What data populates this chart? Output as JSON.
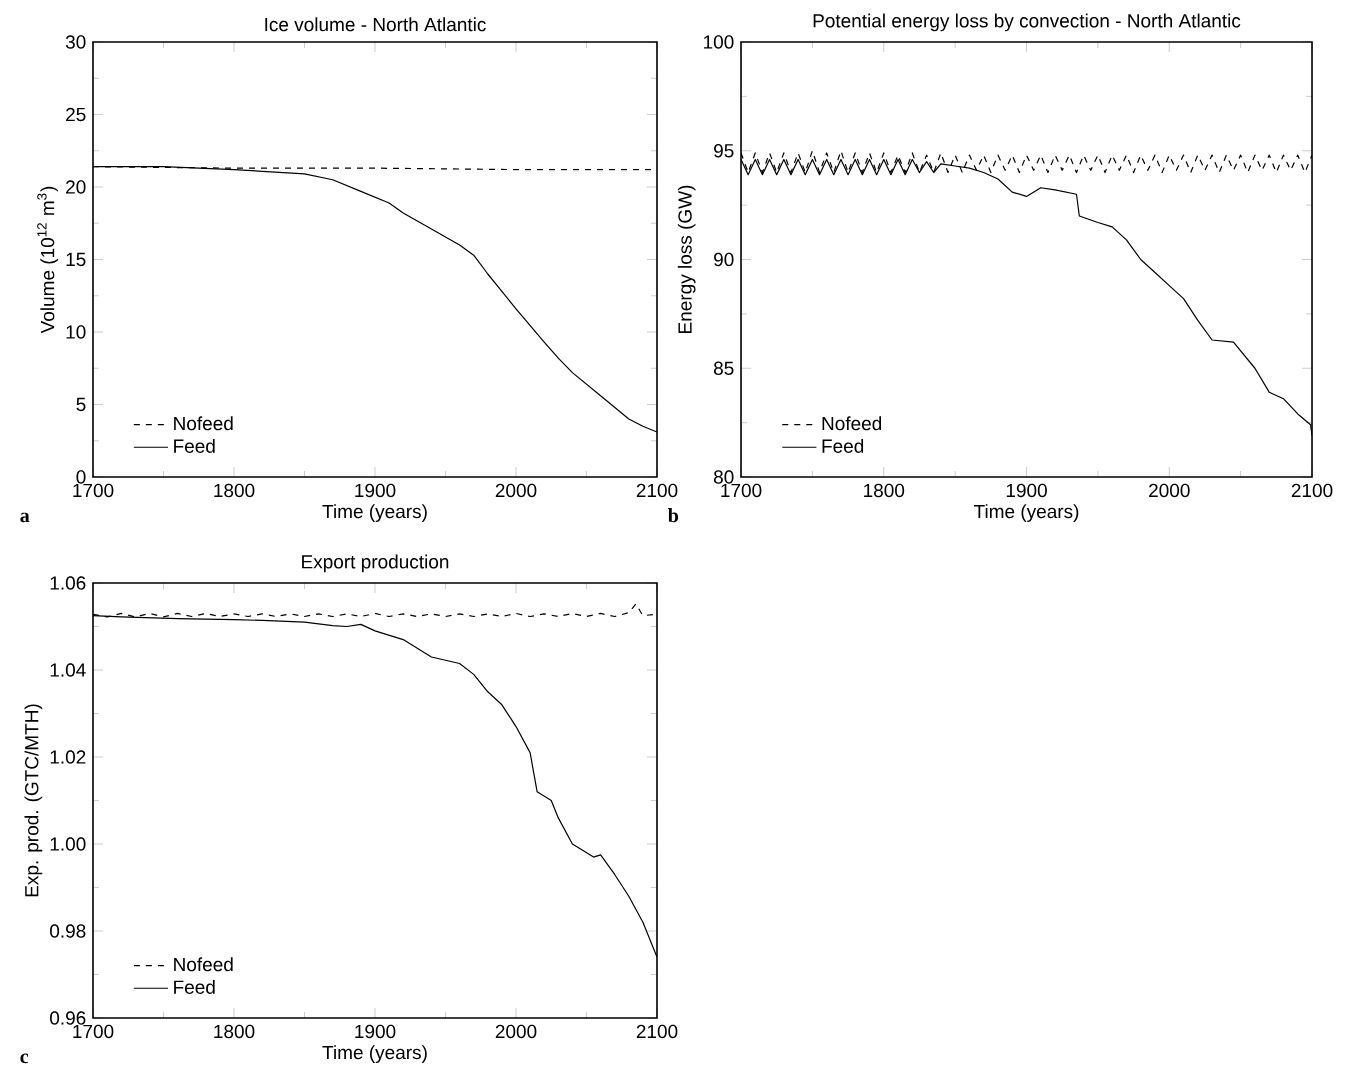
{
  "chart_data": [
    {
      "type": "line",
      "title": "Ice volume - North Atlantic",
      "xlabel": "Time (years)",
      "ylabel": "Volume (10$^{12}$ m$^{3}$)",
      "annotations": [
        "a"
      ],
      "legend": "bottom left",
      "xlim": [
        1700,
        2100
      ],
      "xticks": [
        1700,
        1800,
        1900,
        2000,
        2100
      ],
      "ylim": [
        0,
        30
      ],
      "yticks": [
        0,
        5,
        10,
        15,
        20,
        25,
        30
      ],
      "series": [
        {
          "name": "Nofeed",
          "color": "#000000",
          "line_style": "dashed",
          "x": [
            1700,
            1800,
            1900,
            2000,
            2100
          ],
          "values": [
            21.4,
            21.3,
            21.3,
            21.2,
            21.2
          ]
        },
        {
          "name": "Feed",
          "color": "#000000",
          "line_style": "solid",
          "x": [
            1700,
            1750,
            1800,
            1850,
            1870,
            1890,
            1900,
            1910,
            1920,
            1940,
            1960,
            1970,
            1980,
            2000,
            2020,
            2030,
            2040,
            2060,
            2080,
            2090,
            2100
          ],
          "values": [
            21.4,
            21.4,
            21.2,
            20.9,
            20.5,
            19.7,
            19.3,
            18.9,
            18.2,
            17.1,
            16.0,
            15.3,
            14.0,
            11.6,
            9.3,
            8.2,
            7.2,
            5.6,
            4.0,
            3.5,
            3.1
          ]
        }
      ]
    },
    {
      "type": "line",
      "title": "Potential energy loss by convection - North Atlantic",
      "xlabel": "Time (years)",
      "ylabel": "Energy loss (GW)",
      "annotations": [
        "b"
      ],
      "legend": "bottom left",
      "xlim": [
        1700,
        2100
      ],
      "xticks": [
        1700,
        1800,
        1900,
        2000,
        2100
      ],
      "ylim": [
        80,
        100
      ],
      "yticks": [
        80,
        85,
        90,
        95,
        100
      ],
      "series": [
        {
          "name": "Nofeed",
          "color": "#000000",
          "line_style": "dashed",
          "x": [
            1700,
            1705,
            1710,
            1715,
            1720,
            1725,
            1730,
            1735,
            1740,
            1745,
            1750,
            1755,
            1760,
            1765,
            1770,
            1775,
            1780,
            1785,
            1790,
            1795,
            1800,
            1805,
            1810,
            1815,
            1820,
            1825,
            1830,
            1835,
            1840,
            1845,
            1850,
            1855,
            1860,
            1865,
            1870,
            1875,
            1880,
            1885,
            1890,
            1895,
            1900,
            1905,
            1910,
            1915,
            1920,
            1925,
            1930,
            1935,
            1940,
            1945,
            1950,
            1955,
            1960,
            1965,
            1970,
            1975,
            1980,
            1985,
            1990,
            1995,
            2000,
            2005,
            2010,
            2015,
            2020,
            2025,
            2030,
            2035,
            2040,
            2045,
            2050,
            2055,
            2060,
            2065,
            2070,
            2075,
            2080,
            2085,
            2090,
            2095,
            2100
          ],
          "values": [
            94.9,
            94.0,
            94.9,
            94.0,
            94.9,
            94.0,
            94.9,
            94.0,
            94.9,
            94.0,
            95.0,
            94.0,
            94.9,
            94.0,
            95.0,
            94.0,
            94.9,
            94.0,
            94.9,
            94.0,
            94.9,
            94.0,
            94.8,
            94.0,
            94.9,
            94.0,
            94.8,
            94.0,
            94.9,
            94.0,
            94.8,
            94.0,
            94.8,
            94.1,
            94.8,
            94.0,
            94.8,
            94.1,
            94.8,
            94.0,
            94.8,
            94.1,
            94.8,
            94.0,
            94.8,
            94.1,
            94.8,
            94.0,
            94.8,
            94.1,
            94.8,
            94.0,
            94.8,
            94.1,
            94.8,
            94.0,
            94.8,
            94.1,
            94.8,
            94.0,
            94.8,
            94.1,
            94.8,
            94.0,
            94.8,
            94.1,
            94.8,
            94.0,
            94.8,
            94.1,
            94.8,
            94.0,
            94.8,
            94.1,
            94.8,
            94.0,
            94.8,
            94.1,
            94.8,
            94.0,
            94.8
          ]
        },
        {
          "name": "Feed",
          "color": "#000000",
          "line_style": "solid",
          "x": [
            1700,
            1705,
            1710,
            1715,
            1720,
            1725,
            1730,
            1735,
            1740,
            1745,
            1750,
            1755,
            1760,
            1765,
            1770,
            1775,
            1780,
            1785,
            1790,
            1795,
            1800,
            1805,
            1810,
            1815,
            1820,
            1825,
            1830,
            1835,
            1840,
            1850,
            1860,
            1870,
            1880,
            1890,
            1900,
            1910,
            1920,
            1935,
            1937,
            1950,
            1960,
            1970,
            1980,
            1990,
            2000,
            2010,
            2020,
            2030,
            2045,
            2060,
            2070,
            2080,
            2090,
            2099,
            2100
          ],
          "values": [
            94.6,
            93.9,
            94.6,
            93.9,
            94.6,
            93.9,
            94.6,
            93.9,
            94.6,
            93.9,
            94.6,
            93.9,
            94.6,
            93.9,
            94.6,
            93.9,
            94.6,
            93.9,
            94.6,
            93.9,
            94.6,
            93.9,
            94.6,
            93.9,
            94.6,
            94.0,
            94.5,
            94.0,
            94.4,
            94.3,
            94.2,
            94.0,
            93.7,
            93.1,
            92.9,
            93.3,
            93.2,
            93.0,
            92.0,
            91.7,
            91.5,
            90.9,
            90.0,
            89.4,
            88.8,
            88.2,
            87.2,
            86.3,
            86.2,
            85.0,
            83.9,
            83.6,
            82.9,
            82.4,
            81.9
          ]
        }
      ]
    },
    {
      "type": "line",
      "title": "Export production",
      "xlabel": "Time (years)",
      "ylabel": "Exp. prod. (GTC/MTH)",
      "annotations": [
        "c"
      ],
      "legend": "bottom left",
      "xlim": [
        1700,
        2100
      ],
      "xticks": [
        1700,
        1800,
        1900,
        2000,
        2100
      ],
      "ylim": [
        0.96,
        1.06
      ],
      "yticks": [
        {
          "value": 0.96,
          "label": "0.96"
        },
        {
          "value": 0.98,
          "label": "0.98"
        },
        {
          "value": 1.0,
          "label": "1.00"
        },
        {
          "value": 1.02,
          "label": "1.02"
        },
        {
          "value": 1.04,
          "label": "1.04"
        },
        {
          "value": 1.06,
          "label": "1.06"
        }
      ],
      "series": [
        {
          "name": "Nofeed",
          "color": "#000000",
          "line_style": "dashed",
          "x": [
            1700,
            1710,
            1720,
            1730,
            1740,
            1750,
            1760,
            1770,
            1780,
            1790,
            1800,
            1810,
            1820,
            1830,
            1840,
            1850,
            1860,
            1870,
            1880,
            1890,
            1900,
            1910,
            1920,
            1930,
            1940,
            1950,
            1960,
            1970,
            1980,
            1990,
            2000,
            2010,
            2020,
            2030,
            2040,
            2050,
            2060,
            2070,
            2080,
            2085,
            2090,
            2100
          ],
          "values": [
            1.0528,
            1.0522,
            1.053,
            1.0522,
            1.053,
            1.0522,
            1.053,
            1.0523,
            1.053,
            1.0523,
            1.0529,
            1.0523,
            1.0529,
            1.0523,
            1.0529,
            1.0523,
            1.0529,
            1.0523,
            1.0529,
            1.0523,
            1.053,
            1.0523,
            1.0529,
            1.0523,
            1.0529,
            1.0523,
            1.0529,
            1.0523,
            1.0529,
            1.0523,
            1.053,
            1.0523,
            1.0529,
            1.0523,
            1.053,
            1.0523,
            1.053,
            1.0523,
            1.0532,
            1.0552,
            1.0525,
            1.0528
          ]
        },
        {
          "name": "Feed",
          "color": "#000000",
          "line_style": "solid",
          "x": [
            1700,
            1720,
            1740,
            1760,
            1780,
            1800,
            1820,
            1850,
            1870,
            1880,
            1890,
            1900,
            1920,
            1940,
            1960,
            1970,
            1980,
            1990,
            2000,
            2010,
            2015,
            2025,
            2030,
            2040,
            2055,
            2060,
            2070,
            2080,
            2090,
            2100
          ],
          "values": [
            1.0525,
            1.0522,
            1.052,
            1.0518,
            1.0517,
            1.0516,
            1.0514,
            1.051,
            1.0502,
            1.05,
            1.0505,
            1.049,
            1.047,
            1.043,
            1.0415,
            1.039,
            1.035,
            1.032,
            1.027,
            1.021,
            1.012,
            1.01,
            1.006,
            1.0,
            0.997,
            0.9975,
            0.993,
            0.988,
            0.982,
            0.974
          ]
        }
      ]
    }
  ]
}
